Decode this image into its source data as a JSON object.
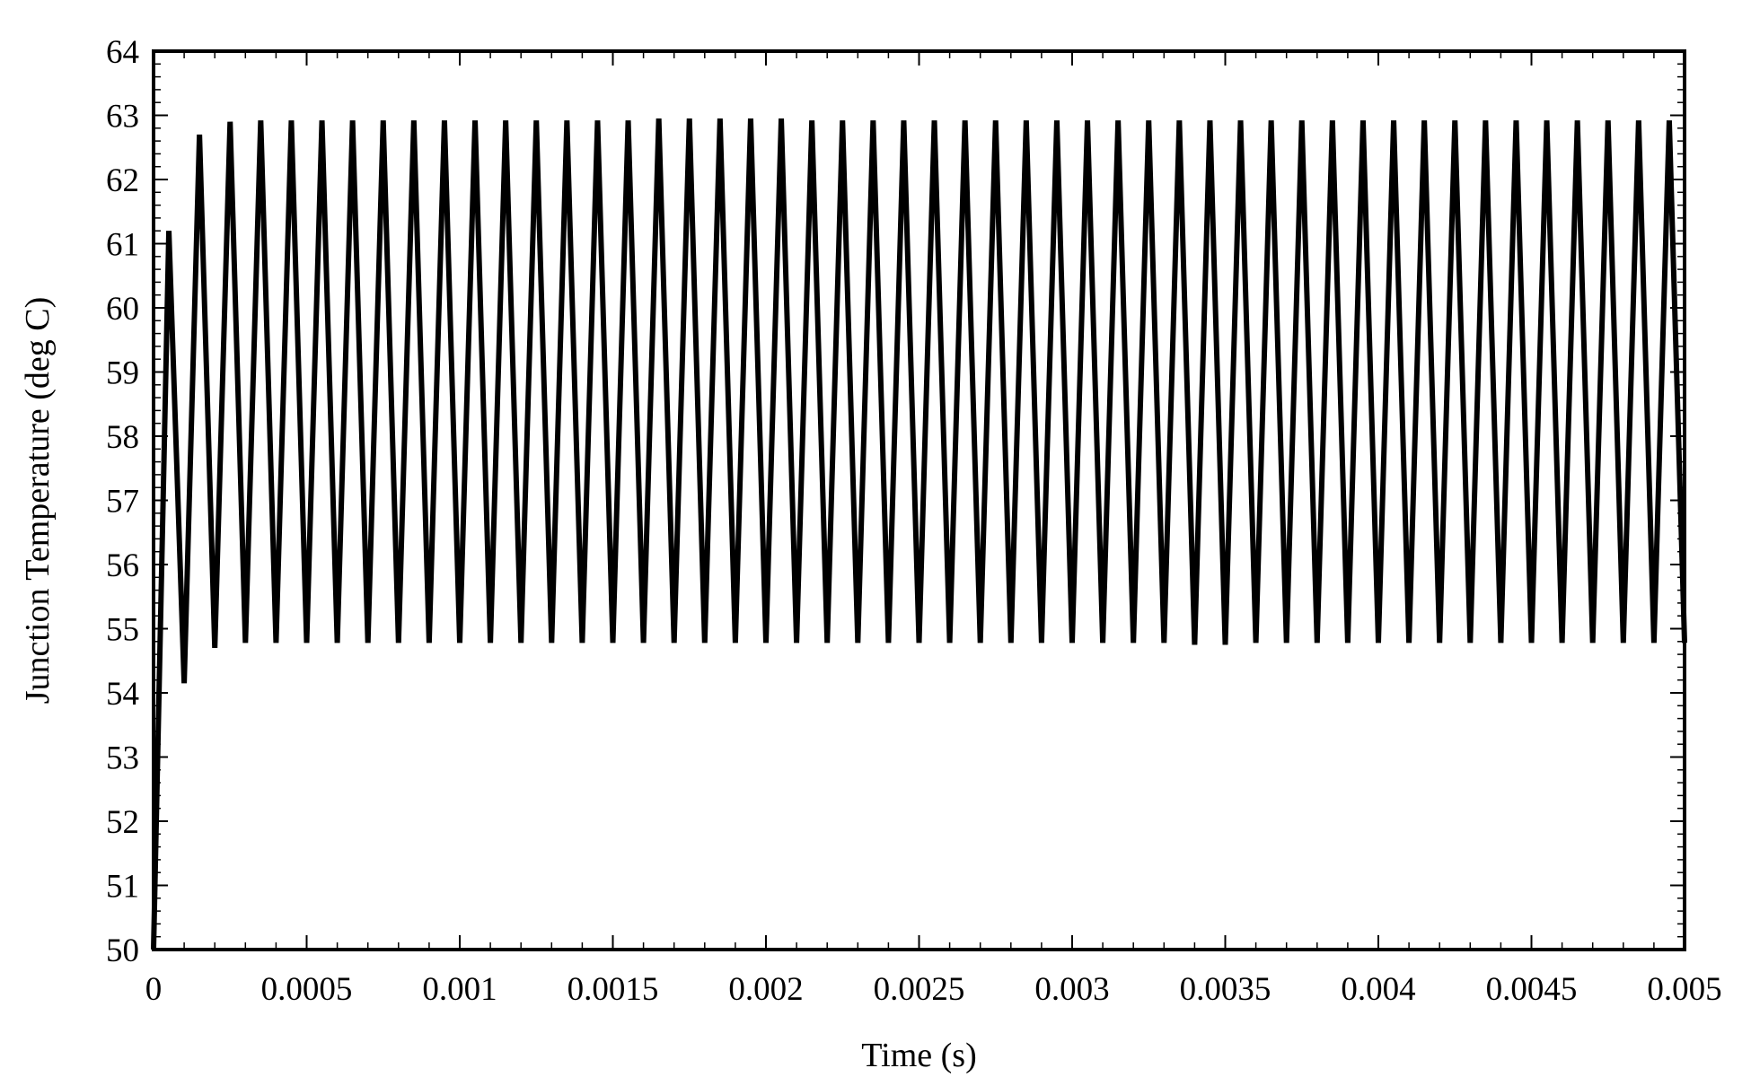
{
  "chart_data": {
    "type": "line",
    "title": "",
    "xlabel": "Time (s)",
    "ylabel": "Junction Temperature (deg C)",
    "xlim": [
      0,
      0.005
    ],
    "ylim": [
      50,
      64
    ],
    "xticks": [
      0,
      0.0005,
      0.001,
      0.0015,
      0.002,
      0.0025,
      0.003,
      0.0035,
      0.004,
      0.0045,
      0.005
    ],
    "xtick_labels": [
      "0",
      "0.0005",
      "0.001",
      "0.0015",
      "0.002",
      "0.0025",
      "0.003",
      "0.0035",
      "0.004",
      "0.0045",
      "0.005"
    ],
    "yticks": [
      50,
      51,
      52,
      53,
      54,
      55,
      56,
      57,
      58,
      59,
      60,
      61,
      62,
      63,
      64
    ],
    "ytick_labels": [
      "50",
      "51",
      "52",
      "53",
      "54",
      "55",
      "56",
      "57",
      "58",
      "59",
      "60",
      "61",
      "62",
      "63",
      "64"
    ],
    "grid": false,
    "legend": "none",
    "line_color": "#000000",
    "series": [
      {
        "x": [
          0,
          5e-05,
          0.0001,
          0.00015,
          0.0002,
          0.00025,
          0.0003,
          0.00035,
          0.0004,
          0.00045,
          0.0005,
          0.00055,
          0.0006,
          0.00065,
          0.0007,
          0.00075,
          0.0008,
          0.00085,
          0.0009,
          0.00095,
          0.001,
          0.00105,
          0.0011,
          0.00115,
          0.0012,
          0.00125,
          0.0013,
          0.00135,
          0.0014,
          0.00145,
          0.0015,
          0.00155,
          0.0016,
          0.00165,
          0.0017,
          0.00175,
          0.0018,
          0.00185,
          0.0019,
          0.00195,
          0.002,
          0.00205,
          0.0021,
          0.00215,
          0.0022,
          0.00225,
          0.0023,
          0.00235,
          0.0024,
          0.00245,
          0.0025,
          0.00255,
          0.0026,
          0.00265,
          0.0027,
          0.00275,
          0.0028,
          0.00285,
          0.0029,
          0.00295,
          0.003,
          0.00305,
          0.0031,
          0.00315,
          0.0032,
          0.00325,
          0.0033,
          0.00335,
          0.0034,
          0.00345,
          0.0035,
          0.00355,
          0.0036,
          0.00365,
          0.0037,
          0.00375,
          0.0038,
          0.00385,
          0.0039,
          0.00395,
          0.004,
          0.00405,
          0.0041,
          0.00415,
          0.0042,
          0.00425,
          0.0043,
          0.00435,
          0.0044,
          0.00445,
          0.0045,
          0.00455,
          0.0046,
          0.00465,
          0.0047,
          0.00475,
          0.0048,
          0.00485,
          0.0049,
          0.00495,
          0.005
        ],
        "y": [
          50.0,
          61.2,
          54.15,
          62.7,
          54.7,
          62.9,
          54.78,
          62.92,
          54.78,
          62.92,
          54.78,
          62.92,
          54.78,
          62.92,
          54.78,
          62.92,
          54.78,
          62.92,
          54.78,
          62.92,
          54.78,
          62.92,
          54.78,
          62.92,
          54.78,
          62.92,
          54.78,
          62.92,
          54.78,
          62.92,
          54.78,
          62.92,
          54.78,
          62.95,
          54.78,
          62.95,
          54.78,
          62.95,
          54.78,
          62.95,
          54.78,
          62.95,
          54.78,
          62.92,
          54.78,
          62.92,
          54.78,
          62.92,
          54.78,
          62.92,
          54.78,
          62.92,
          54.78,
          62.92,
          54.78,
          62.92,
          54.78,
          62.92,
          54.78,
          62.92,
          54.78,
          62.92,
          54.78,
          62.92,
          54.78,
          62.92,
          54.78,
          62.92,
          54.75,
          62.92,
          54.75,
          62.92,
          54.78,
          62.92,
          54.78,
          62.92,
          54.78,
          62.92,
          54.78,
          62.92,
          54.78,
          62.92,
          54.78,
          62.92,
          54.78,
          62.92,
          54.78,
          62.92,
          54.78,
          62.92,
          54.78,
          62.92,
          54.78,
          62.92,
          54.78,
          62.92,
          54.78,
          62.92,
          54.78,
          62.92,
          54.78
        ]
      }
    ]
  }
}
